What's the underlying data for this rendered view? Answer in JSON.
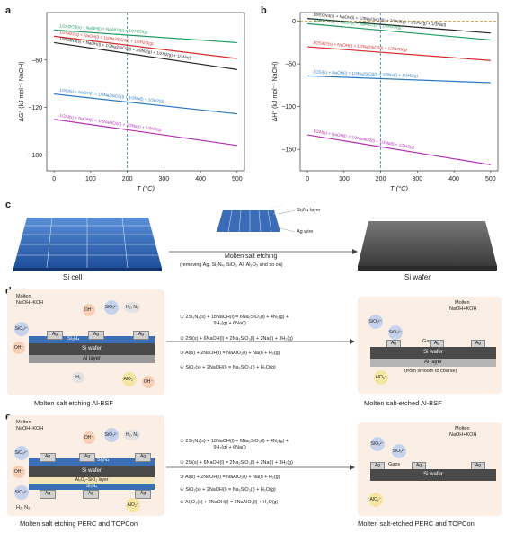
{
  "panels": {
    "a": "a",
    "b": "b",
    "c": "c",
    "d": "d",
    "e": "e"
  },
  "chart_data": [
    {
      "type": "line",
      "ylabel": "ΔG° (kJ mol⁻¹ NaOH)",
      "xlabel": "T (°C)",
      "xlim": [
        -20,
        520
      ],
      "ylim": [
        -200,
        0
      ],
      "xticks": [
        "0",
        "100",
        "200",
        "300",
        "400",
        "500"
      ],
      "yticks": [
        "−60",
        "−120",
        "−180"
      ],
      "vline": 200,
      "series": [
        {
          "name": "1/2Al2O3(s) + NaOH(l) = NaAlO2(l) + 1/2H2O(g)",
          "color": "#1a9a60",
          "x": [
            0,
            500
          ],
          "y": [
            -22,
            -38
          ]
        },
        {
          "name": "1/2SiO2(s) + NaOH(l) = 1/2Na2SiO3(l) + 1/2H2O(g)",
          "color": "#d32a2a",
          "x": [
            0,
            500
          ],
          "y": [
            -30,
            -58
          ]
        },
        {
          "name": "1/9Si3N4(s) + NaOH(l) + 1/3Na2SiO3(l) + 2/9N2(g) + 1/2H2(g) + 1/3Na(l)",
          "color": "#222222",
          "x": [
            0,
            500
          ],
          "y": [
            -38,
            -72
          ]
        },
        {
          "name": "1/3Si(s) + NaOH(l) = 1/3Na2SiO3(l) + 1/3Na(l) + 1/2H2(g)",
          "color": "#2a7ac0",
          "x": [
            0,
            500
          ],
          "y": [
            -103,
            -128
          ]
        },
        {
          "name": "1/2Al(s) + NaOH(l) = 1/2NaAlO2(l) + 1/2Na(l) + 1/2H2(g)",
          "color": "#b42ab4",
          "x": [
            0,
            500
          ],
          "y": [
            -135,
            -168
          ]
        }
      ]
    },
    {
      "type": "line",
      "ylabel": "ΔH° (kJ mol⁻¹ NaOH)",
      "xlabel": "T (°C)",
      "xlim": [
        -20,
        520
      ],
      "ylim": [
        -175,
        10
      ],
      "xticks": [
        "0",
        "100",
        "200",
        "300",
        "400",
        "500"
      ],
      "yticks": [
        "0",
        "−50",
        "−100",
        "−150"
      ],
      "yticks_minor": [
        "−25",
        "−75",
        "−125",
        "−175"
      ],
      "vline": 200,
      "series": [
        {
          "name": "1/9Si3N4(s) + NaOH(l) = 1/3Na2SiO3(l) + 2/9N2(g) + 1/2H2(g) + 1/3Na(l)",
          "color": "#222222",
          "x": [
            0,
            500
          ],
          "y": [
            3,
            -14
          ]
        },
        {
          "name": "1/2Al2O3(s) + NaOH(l) = NaAlO2(l) + 1/2H2O(g)",
          "color": "#1a9a60",
          "x": [
            0,
            500
          ],
          "y": [
            -3,
            -22
          ]
        },
        {
          "name": "1/2SiO2(s) + NaOH(l) = 1/2Na2SiO3(l) + 1/2H2O(g)",
          "color": "#d32a2a",
          "x": [
            0,
            500
          ],
          "y": [
            -30,
            -46
          ]
        },
        {
          "name": "1/3Si(s) + NaOH(l) = 1/3Na2SiO3(l) + 1/3Na(l) + 1/2H2(g)",
          "color": "#2a7ac0",
          "x": [
            0,
            500
          ],
          "y": [
            -64,
            -72
          ]
        },
        {
          "name": "1/2Al(s) + NaOH(l) = 1/2NaAlO2(l) + 1/2Na(l) + 1/2H2(g)",
          "color": "#b42ab4",
          "x": [
            0,
            500
          ],
          "y": [
            -133,
            -168
          ]
        }
      ]
    }
  ],
  "c": {
    "si_cell": "Si cell",
    "si_wafer": "Si wafer",
    "process": "Molten salt etching",
    "process_sub": "(removing Ag, Si₃N₄, SiO₂, Al, Al₂O₃ and so on)",
    "si3n4_layer": "Si₃N₄ layer",
    "ag_wire": "Ag wire"
  },
  "d": {
    "molten": "Molten",
    "naoh_koh": "NaOH–KOH",
    "molten2": "Molten",
    "naoh_koh2": "NaOH+KOH",
    "oh": "OH⁻",
    "sio3": "SiO₃²⁻",
    "h2n2": "H₂, N₂",
    "h2": "H₂",
    "alo2": "AlO₂⁻",
    "ag": "Ag",
    "si3n4": "Si₃N₄",
    "si_wafer": "Si wafer",
    "al_layer": "Al layer",
    "gaps": "Gaps",
    "coarse": "(from smooth to coarse)",
    "eq1": "2Si₃N₄(s) + 18NaOH(l) = 6Na₂SiO₃(l) + 4N₂(g) +",
    "eq1b": "9H₂(g) + 6Na(l)",
    "eq2": "2Si(s) + 6NaOH(l) = 2Na₂SiO₃(l) + 2Na(l) + 3H₂(g)",
    "eq3": "Al(s) + 2NaOH(l) = NaAlO₂(l) + Na(l) + H₂(g)",
    "eq4": "SiO₂(s) + 2NaOH(l) = Na₂SiO₃(l) + H₂O(g)",
    "cap_left": "Molten salt etching Al-BSF",
    "cap_right": "Molten salt-etched Al-BSF",
    "n1": "①",
    "n2": "②",
    "n3": "③",
    "n4": "④"
  },
  "e": {
    "molten": "Molten",
    "naoh_koh": "NaOH–KOH",
    "molten2": "Molten",
    "naoh_koh2": "NaOH+KOH",
    "oh": "OH⁻",
    "sio3": "SiO₃²⁻",
    "h2n2": "H₂, N₂",
    "h2n2b": "H₂, N₂",
    "alo2": "AlO₂⁻",
    "ag": "Ag",
    "si3n4": "Si₃N₄",
    "si_wafer": "Si wafer",
    "alox": "AlₓOᵧ–SiO₂ layer",
    "gaps": "Gaps",
    "eq1": "2Si₃N₄(s) + 18NaOH(l) = 6Na₂SiO₃(l) + 4N₂(g) +",
    "eq1b": "9H₂(g) + 6Na(l)",
    "eq2": "2Si(s) + 6NaOH(l) = 2Na₂SiO₃(l) + 2Na(l) + 3H₂(g)",
    "eq3": "Al(s) + 2NaOH(l) = NaAlO₂(l) + Na(l) + H₂(g)",
    "eq4": "SiO₂(s) + 2NaOH(l) = Na₂SiO₃(l) + H₂O(g)",
    "eq5": "Al₂O₃(s) + 2NaOH(l) = 2NaAlO₂(l) + H₂O(g)",
    "cap_left": "Molten salt etching PERC and TOPCon",
    "cap_right": "Molten salt-etched PERC and TOPCon",
    "n1": "①",
    "n2": "②",
    "n3": "③",
    "n4": "④",
    "n5": "⑤"
  }
}
